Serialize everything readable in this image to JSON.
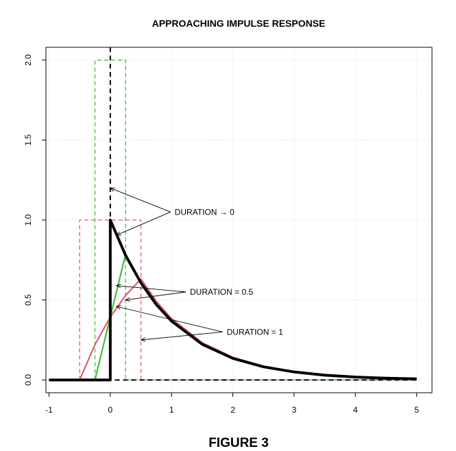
{
  "chart_data": {
    "type": "line",
    "title": "APPROACHING IMPULSE RESPONSE",
    "caption": "FIGURE 3",
    "xlabel": "",
    "ylabel": "",
    "xlim": [
      -1.05,
      5.25
    ],
    "ylim": [
      -0.08,
      2.08
    ],
    "x_ticks": [
      -1,
      0,
      1,
      2,
      3,
      4,
      5
    ],
    "y_ticks": [
      0.0,
      0.5,
      1.0,
      1.5,
      2.0
    ],
    "x_tick_labels": [
      "-1",
      "0",
      "1",
      "2",
      "3",
      "4",
      "5"
    ],
    "y_tick_labels": [
      "0.0",
      "0.5",
      "1.0",
      "1.5",
      "2.0"
    ],
    "grid": true,
    "decay_rate": 1,
    "series": [
      {
        "role": "response",
        "duration": 1,
        "color": "#e05c6e",
        "x": [
          -1,
          -0.5,
          -0.25,
          0,
          0.25,
          0.5,
          0.75,
          1,
          1.5,
          2,
          2.5,
          3,
          3.5,
          4,
          4.5,
          5
        ],
        "y": [
          0,
          0,
          0.221,
          0.393,
          0.528,
          0.632,
          0.492,
          0.383,
          0.233,
          0.141,
          0.086,
          0.052,
          0.032,
          0.019,
          0.012,
          0.007
        ]
      },
      {
        "role": "response",
        "duration": 0.5,
        "color": "#3fbf3f",
        "x": [
          -1,
          -0.25,
          0,
          0.25,
          0.5,
          0.75,
          1,
          1.5,
          2,
          2.5,
          3,
          3.5,
          4,
          4.5,
          5
        ],
        "y": [
          0,
          0,
          0.393,
          0.787,
          0.613,
          0.477,
          0.372,
          0.225,
          0.137,
          0.083,
          0.05,
          0.03,
          0.018,
          0.011,
          0.007
        ]
      },
      {
        "role": "response",
        "duration": 0,
        "color": "#000000",
        "x": [
          -1,
          0,
          0,
          0.25,
          0.5,
          0.75,
          1,
          1.5,
          2,
          2.5,
          3,
          3.5,
          4,
          4.5,
          5
        ],
        "y": [
          0,
          0,
          1,
          0.779,
          0.607,
          0.472,
          0.368,
          0.223,
          0.135,
          0.082,
          0.05,
          0.03,
          0.018,
          0.011,
          0.007
        ]
      },
      {
        "role": "input-pulse",
        "duration": 1,
        "color": "#e05c6e",
        "x": [
          -0.5,
          -0.5,
          0.5,
          0.5,
          5
        ],
        "y": [
          0,
          1,
          1,
          0,
          0
        ]
      },
      {
        "role": "input-pulse",
        "duration": 0.5,
        "color": "#3fbf3f",
        "x": [
          -0.25,
          -0.25,
          0.25,
          0.25,
          5
        ],
        "y": [
          0,
          2,
          2,
          0,
          0
        ]
      },
      {
        "role": "input-impulse",
        "duration": 0,
        "color": "#000000",
        "x": [
          0,
          0,
          5
        ],
        "y": [
          2.08,
          0,
          0
        ]
      }
    ],
    "annotations": [
      {
        "text": "DURATION → 0",
        "anchor": [
          1.05,
          1.05
        ],
        "text_at": [
          1.05,
          1.05
        ],
        "points_to": [
          [
            0.0,
            1.2
          ],
          [
            0.1,
            0.905
          ]
        ]
      },
      {
        "text": "DURATION = 0.5",
        "anchor": [
          1.3,
          0.55
        ],
        "text_at": [
          1.3,
          0.55
        ],
        "points_to": [
          [
            0.1,
            0.59
          ],
          [
            0.25,
            0.5
          ]
        ]
      },
      {
        "text": "DURATION = 1",
        "anchor": [
          1.9,
          0.3
        ],
        "text_at": [
          1.9,
          0.3
        ],
        "points_to": [
          [
            0.1,
            0.46
          ],
          [
            0.5,
            0.25
          ]
        ]
      }
    ]
  }
}
